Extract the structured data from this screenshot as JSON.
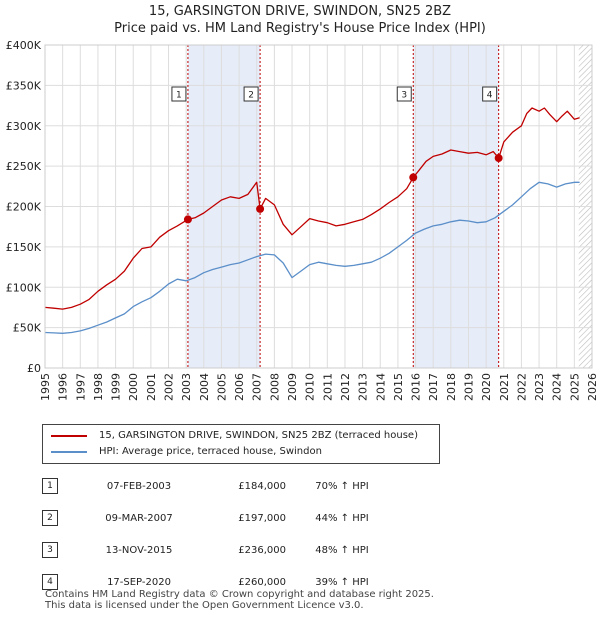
{
  "title": "15, GARSINGTON DRIVE, SWINDON, SN25 2BZ",
  "subtitle": "Price paid vs. HM Land Registry's House Price Index (HPI)",
  "colors": {
    "property": "#c00000",
    "hpi": "#5b8fc9",
    "shade": "#e6ecf8",
    "marker_line": "#c00000"
  },
  "chart_data": {
    "type": "line",
    "xlim": [
      1995,
      2026
    ],
    "ylim": [
      0,
      400000
    ],
    "y_ticks": [
      0,
      50000,
      100000,
      150000,
      200000,
      250000,
      300000,
      350000,
      400000
    ],
    "y_tick_labels": [
      "£0",
      "£50K",
      "£100K",
      "£150K",
      "£200K",
      "£250K",
      "£300K",
      "£350K",
      "£400K"
    ],
    "x_ticks": [
      1995,
      1996,
      1997,
      1998,
      1999,
      2000,
      2001,
      2002,
      2003,
      2004,
      2005,
      2006,
      2007,
      2008,
      2009,
      2010,
      2011,
      2012,
      2013,
      2014,
      2015,
      2016,
      2017,
      2018,
      2019,
      2020,
      2021,
      2022,
      2023,
      2024,
      2025,
      2026
    ],
    "x_tick_labels": [
      "1995",
      "1996",
      "1997",
      "1998",
      "1999",
      "2000",
      "2001",
      "2002",
      "2003",
      "2004",
      "2005",
      "2006",
      "2007",
      "2008",
      "2009",
      "2010",
      "2011",
      "2012",
      "2013",
      "2014",
      "2015",
      "2016",
      "2017",
      "2018",
      "2019",
      "2020",
      "2021",
      "2022",
      "2023",
      "2024",
      "2025",
      "2026"
    ],
    "shaded_ranges": [
      [
        2003.1,
        2007.19
      ],
      [
        2015.87,
        2020.71
      ]
    ],
    "hatched_from": 2025.25,
    "series": [
      {
        "name": "15, GARSINGTON DRIVE, SWINDON, SN25 2BZ (terraced house)",
        "color": "#c00000",
        "x": [
          1995,
          1995.5,
          1996,
          1996.5,
          1997,
          1997.5,
          1998,
          1998.5,
          1999,
          1999.5,
          2000,
          2000.5,
          2001,
          2001.5,
          2002,
          2002.5,
          2003.1,
          2003.5,
          2004,
          2004.5,
          2005,
          2005.5,
          2006,
          2006.5,
          2007.0,
          2007.19,
          2007.5,
          2008,
          2008.5,
          2009,
          2009.5,
          2010,
          2010.5,
          2011,
          2011.5,
          2012,
          2012.5,
          2013,
          2013.5,
          2014,
          2014.5,
          2015,
          2015.5,
          2015.87,
          2016.2,
          2016.6,
          2017,
          2017.5,
          2018,
          2018.5,
          2019,
          2019.5,
          2020,
          2020.4,
          2020.71,
          2021,
          2021.5,
          2022,
          2022.3,
          2022.6,
          2023,
          2023.3,
          2023.6,
          2024,
          2024.3,
          2024.6,
          2025,
          2025.3
        ],
        "y": [
          75000,
          74000,
          73000,
          75000,
          79000,
          85000,
          95000,
          103000,
          110000,
          120000,
          136000,
          148000,
          150000,
          162000,
          170000,
          176000,
          184000,
          186000,
          192000,
          200000,
          208000,
          212000,
          210000,
          215000,
          230000,
          197000,
          210000,
          202000,
          178000,
          165000,
          175000,
          185000,
          182000,
          180000,
          176000,
          178000,
          181000,
          184000,
          190000,
          197000,
          205000,
          212000,
          222000,
          236000,
          245000,
          256000,
          262000,
          265000,
          270000,
          268000,
          266000,
          267000,
          264000,
          268000,
          260000,
          280000,
          292000,
          300000,
          315000,
          322000,
          318000,
          322000,
          314000,
          305000,
          312000,
          318000,
          308000,
          310000
        ]
      },
      {
        "name": "HPI: Average price, terraced house, Swindon",
        "color": "#5b8fc9",
        "x": [
          1995,
          1995.5,
          1996,
          1996.5,
          1997,
          1997.5,
          1998,
          1998.5,
          1999,
          1999.5,
          2000,
          2000.5,
          2001,
          2001.5,
          2002,
          2002.5,
          2003,
          2003.5,
          2004,
          2004.5,
          2005,
          2005.5,
          2006,
          2006.5,
          2007,
          2007.5,
          2008,
          2008.5,
          2009,
          2009.5,
          2010,
          2010.5,
          2011,
          2011.5,
          2012,
          2012.5,
          2013,
          2013.5,
          2014,
          2014.5,
          2015,
          2015.5,
          2016,
          2016.5,
          2017,
          2017.5,
          2018,
          2018.5,
          2019,
          2019.5,
          2020,
          2020.5,
          2021,
          2021.5,
          2022,
          2022.5,
          2023,
          2023.5,
          2024,
          2024.5,
          2025,
          2025.3
        ],
        "y": [
          44000,
          43500,
          43000,
          44000,
          46000,
          49000,
          53000,
          57000,
          62000,
          67000,
          76000,
          82000,
          87000,
          95000,
          104000,
          110000,
          108000,
          112000,
          118000,
          122000,
          125000,
          128000,
          130000,
          134000,
          138000,
          141000,
          140000,
          130000,
          112000,
          120000,
          128000,
          131000,
          129000,
          127000,
          126000,
          127000,
          129000,
          131000,
          136000,
          142000,
          150000,
          158000,
          167000,
          172000,
          176000,
          178000,
          181000,
          183000,
          182000,
          180000,
          181000,
          186000,
          194000,
          202000,
          212000,
          222000,
          230000,
          228000,
          224000,
          228000,
          230000,
          230000
        ]
      }
    ],
    "sales": [
      {
        "num": "1",
        "x": 2003.1,
        "y": 184000
      },
      {
        "num": "2",
        "x": 2007.19,
        "y": 197000
      },
      {
        "num": "3",
        "x": 2015.87,
        "y": 236000
      },
      {
        "num": "4",
        "x": 2020.71,
        "y": 260000
      }
    ]
  },
  "legend": {
    "property_label": "15, GARSINGTON DRIVE, SWINDON, SN25 2BZ (terraced house)",
    "hpi_label": "HPI: Average price, terraced house, Swindon"
  },
  "sales_table": [
    {
      "num": "1",
      "date": "07-FEB-2003",
      "price": "£184,000",
      "hpi": "70% ↑ HPI"
    },
    {
      "num": "2",
      "date": "09-MAR-2007",
      "price": "£197,000",
      "hpi": "44% ↑ HPI"
    },
    {
      "num": "3",
      "date": "13-NOV-2015",
      "price": "£236,000",
      "hpi": "48% ↑ HPI"
    },
    {
      "num": "4",
      "date": "17-SEP-2020",
      "price": "£260,000",
      "hpi": "39% ↑ HPI"
    }
  ],
  "footer": {
    "line1": "Contains HM Land Registry data © Crown copyright and database right 2025.",
    "line2": "This data is licensed under the Open Government Licence v3.0."
  }
}
